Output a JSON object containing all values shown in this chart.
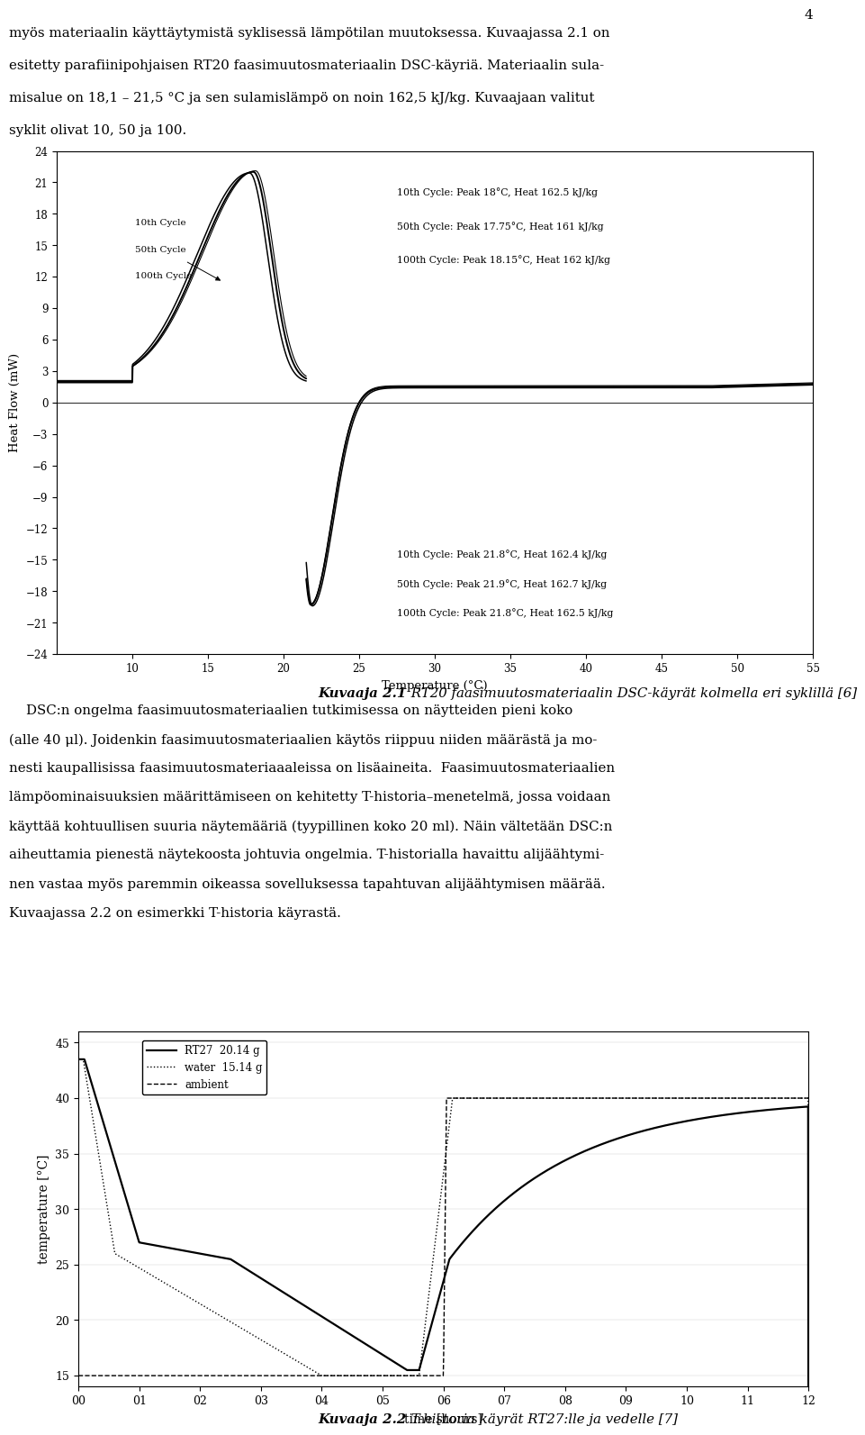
{
  "page_number": "4",
  "fig1_caption_bold": "Kuvaaja 2.1",
  "fig1_caption_rest": " RT20 faasimuutosmateriaalin DSC-käyrät kolmella eri syklillä [6]",
  "fig1_xlabel": "Temperature (°C)",
  "fig1_ylabel": "Heat Flow (mW)",
  "fig1_xlim": [
    5,
    55
  ],
  "fig1_ylim": [
    -24,
    24
  ],
  "fig1_xticks": [
    10,
    15,
    20,
    25,
    30,
    35,
    40,
    45,
    50,
    55
  ],
  "fig1_yticks": [
    -24,
    -21,
    -18,
    -15,
    -12,
    -9,
    -6,
    -3,
    0,
    3,
    6,
    9,
    12,
    15,
    18,
    21,
    24
  ],
  "fig1_annot_upper": [
    "10th Cycle: Peak 18°C, Heat 162.5 kJ/kg",
    "50th Cycle: Peak 17.75°C, Heat 161 kJ/kg",
    "100th Cycle: Peak 18.15°C, Heat 162 kJ/kg"
  ],
  "fig1_annot_lower": [
    "10th Cycle: Peak 21.8°C, Heat 162.4 kJ/kg",
    "50th Cycle: Peak 21.9°C, Heat 162.7 kJ/kg",
    "100th Cycle: Peak 21.8°C, Heat 162.5 kJ/kg"
  ],
  "fig2_caption_bold": "Kuvaaja 2.2",
  "fig2_caption_rest": " T-historia käyrät RT27:lle ja vedelle [7]",
  "fig2_xlabel": "time [hours]",
  "fig2_ylabel": "temperature [°C]",
  "fig2_xlim": [
    0,
    12
  ],
  "fig2_ylim": [
    14,
    46
  ],
  "fig2_legend": [
    "RT27  20.14 g",
    "water  15.14 g",
    "ambient"
  ],
  "top_text_lines": [
    "myös materiaalin käyttäytymistä syklisessä lämpötilan muutoksessa. Kuvaajassa 2.1 on",
    "esitetty parafiinipohjaisen RT20 faasimuutosmateriaalin DSC-käyriä. Materiaalin sula-",
    "misalue on 18,1 – 21,5 °C ja sen sulamislämpö on noin 162,5 kJ/kg. Kuvaajaan valitut",
    "syklit olivat 10, 50 ja 100."
  ],
  "mid_text_lines": [
    "    DSC:n ongelma faasimuutosmateriaalien tutkimisessa on näytteiden pieni koko",
    "(alle 40 μl). Joidenkin faasimuutosmateriaalien käytös riippuu niiden määrästä ja mo-",
    "nesti kaupallisissa faasimuutosmateriaaaleissa on lisäaineita.  Faasimuutosmateriaalien",
    "lämpöominaisuuksien määrittämiseen on kehitetty T-historia–menetelmä, jossa voidaan",
    "käyttää kohtuullisen suuria näytemääriä (tyypillinen koko 20 ml). Näin vältetään DSC:n",
    "aiheuttamia pienestä näytekoosta johtuvia ongelmia. T-historialla havaittu alijäähtymi-",
    "nen vastaa myös paremmin oikeassa sovelluksessa tapahtuvan alijäähtymisen määrää.",
    "Kuvaajassa 2.2 on esimerkki T-historia käyrastä."
  ],
  "background_color": "#ffffff"
}
